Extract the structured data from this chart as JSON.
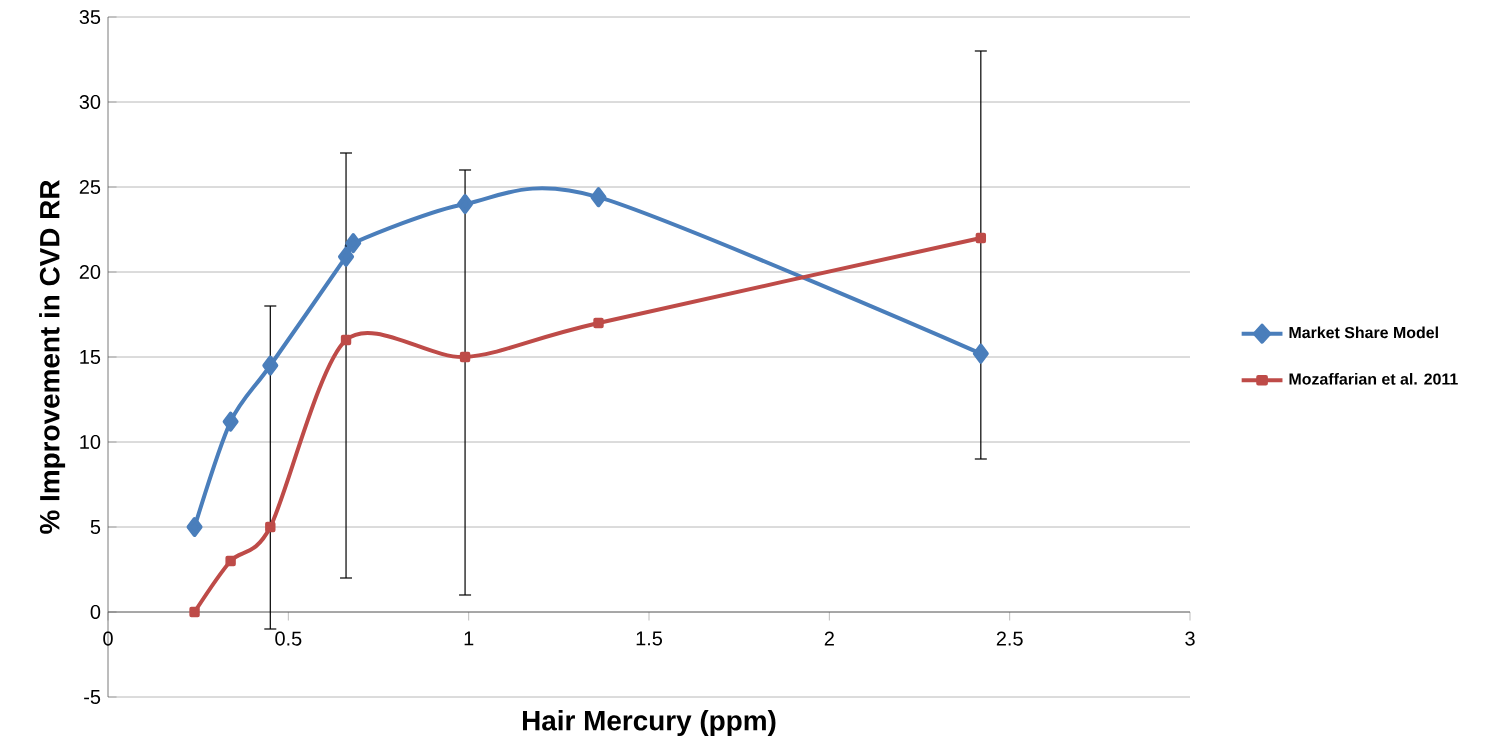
{
  "chart_data": {
    "type": "line",
    "xlabel": "Hair Mercury (ppm)",
    "ylabel": "% Improvement in CVD RR",
    "xlim": [
      0,
      3
    ],
    "ylim": [
      -5,
      35
    ],
    "xticks": [
      0,
      0.5,
      1,
      1.5,
      2,
      2.5,
      3
    ],
    "yticks": [
      -5,
      0,
      5,
      10,
      15,
      20,
      25,
      30,
      35
    ],
    "grid": "y",
    "legend": "right",
    "series": [
      {
        "name": "Market Share Model",
        "color": "#4a7ebb",
        "marker": "diamond",
        "x": [
          0.24,
          0.34,
          0.45,
          0.66,
          0.68,
          0.99,
          1.36,
          2.42
        ],
        "values": [
          5.0,
          11.2,
          14.5,
          20.9,
          21.7,
          24.0,
          24.4,
          15.2
        ]
      },
      {
        "name": "Mozaffarian et al. 2011",
        "color": "#be4b48",
        "marker": "square",
        "x": [
          0.24,
          0.34,
          0.45,
          0.66,
          0.99,
          1.36,
          2.42
        ],
        "values": [
          0,
          3,
          5,
          16,
          15,
          17,
          22
        ],
        "errors": [
          null,
          null,
          [
            -1,
            18
          ],
          [
            2,
            27
          ],
          [
            1,
            26
          ],
          null,
          [
            9,
            33
          ]
        ]
      }
    ]
  }
}
